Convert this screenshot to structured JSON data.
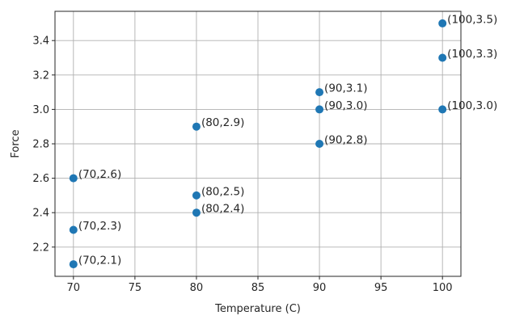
{
  "chart_data": {
    "type": "scatter",
    "xlabel": "Temperature (C)",
    "ylabel": "Force",
    "xlim": [
      68.5,
      101.5
    ],
    "ylim": [
      2.03,
      3.57
    ],
    "xticks": [
      70,
      75,
      80,
      85,
      90,
      95,
      100
    ],
    "yticks": [
      2.2,
      2.4,
      2.6,
      2.8,
      3.0,
      3.2,
      3.4
    ],
    "ytick_labels": [
      "2.2",
      "2.4",
      "2.6",
      "2.8",
      "3.0",
      "3.2",
      "3.4"
    ],
    "grid": true,
    "marker_color": "#1f77b4",
    "points": [
      {
        "x": 70,
        "y": 2.1,
        "label": "(70,2.1)"
      },
      {
        "x": 70,
        "y": 2.3,
        "label": "(70,2.3)"
      },
      {
        "x": 70,
        "y": 2.6,
        "label": "(70,2.6)"
      },
      {
        "x": 80,
        "y": 2.4,
        "label": "(80,2.4)"
      },
      {
        "x": 80,
        "y": 2.5,
        "label": "(80,2.5)"
      },
      {
        "x": 80,
        "y": 2.9,
        "label": "(80,2.9)"
      },
      {
        "x": 90,
        "y": 2.8,
        "label": "(90,2.8)"
      },
      {
        "x": 90,
        "y": 3.0,
        "label": "(90,3.0)"
      },
      {
        "x": 90,
        "y": 3.1,
        "label": "(90,3.1)"
      },
      {
        "x": 100,
        "y": 3.0,
        "label": "(100,3.0)"
      },
      {
        "x": 100,
        "y": 3.3,
        "label": "(100,3.3)"
      },
      {
        "x": 100,
        "y": 3.5,
        "label": "(100,3.5)"
      }
    ]
  }
}
